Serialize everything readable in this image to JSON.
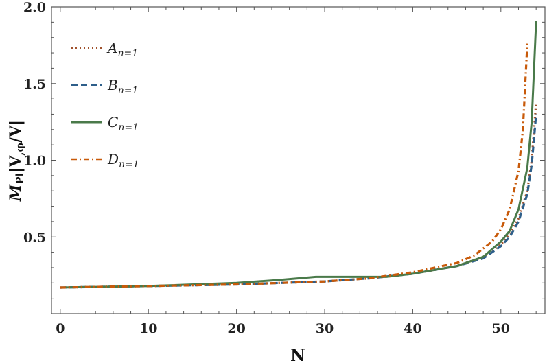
{
  "chart_data": {
    "type": "line",
    "title": "",
    "xlabel": "N",
    "ylabel": {
      "base": "M",
      "base_sub": "Pl",
      "rest": "|V",
      "rest_sub": ",φ",
      "tail": "/V|"
    },
    "xlim": [
      -1,
      55
    ],
    "ylim": [
      0.0,
      2.0
    ],
    "x_ticks": [
      0,
      10,
      20,
      30,
      40,
      50
    ],
    "y_ticks": [
      0.5,
      1.0,
      1.5,
      2.0
    ],
    "x_tick_labels": [
      "0",
      "10",
      "20",
      "30",
      "40",
      "50"
    ],
    "y_tick_labels": [
      "0.5",
      "1.0",
      "1.5",
      "2.0"
    ],
    "grid": false,
    "legend_position": "top-left",
    "series": [
      {
        "name": "A",
        "name_sub": "n=1",
        "color": "#a0522d",
        "style": "dotted",
        "x": [
          0,
          10,
          20,
          30,
          35,
          40,
          45,
          48,
          50,
          51,
          52,
          53,
          53.5,
          54
        ],
        "y": [
          0.17,
          0.18,
          0.19,
          0.21,
          0.23,
          0.26,
          0.31,
          0.37,
          0.45,
          0.52,
          0.62,
          0.8,
          1.0,
          1.38
        ]
      },
      {
        "name": "B",
        "name_sub": "n=1",
        "color": "#2e5f8a",
        "style": "dashed",
        "x": [
          0,
          10,
          20,
          30,
          35,
          40,
          45,
          48,
          50,
          51,
          52,
          53,
          53.5,
          54
        ],
        "y": [
          0.17,
          0.18,
          0.19,
          0.21,
          0.23,
          0.26,
          0.31,
          0.36,
          0.44,
          0.5,
          0.6,
          0.78,
          0.97,
          1.3
        ]
      },
      {
        "name": "C",
        "name_sub": "n=1",
        "color": "#4a7a4a",
        "style": "solid",
        "x": [
          0,
          10,
          20,
          25,
          29,
          30,
          33,
          35,
          37,
          40,
          45,
          48,
          50,
          51,
          52,
          53,
          53.5,
          54
        ],
        "y": [
          0.17,
          0.18,
          0.2,
          0.22,
          0.24,
          0.24,
          0.24,
          0.24,
          0.24,
          0.26,
          0.31,
          0.37,
          0.47,
          0.54,
          0.68,
          0.95,
          1.25,
          1.91
        ]
      },
      {
        "name": "D",
        "name_sub": "n=1",
        "color": "#c85a0a",
        "style": "dash-dot",
        "x": [
          0,
          10,
          20,
          30,
          35,
          40,
          45,
          47,
          49,
          50,
          51,
          52,
          52.5,
          53
        ],
        "y": [
          0.17,
          0.18,
          0.19,
          0.21,
          0.23,
          0.27,
          0.33,
          0.38,
          0.47,
          0.55,
          0.68,
          0.93,
          1.2,
          1.76
        ]
      }
    ]
  }
}
